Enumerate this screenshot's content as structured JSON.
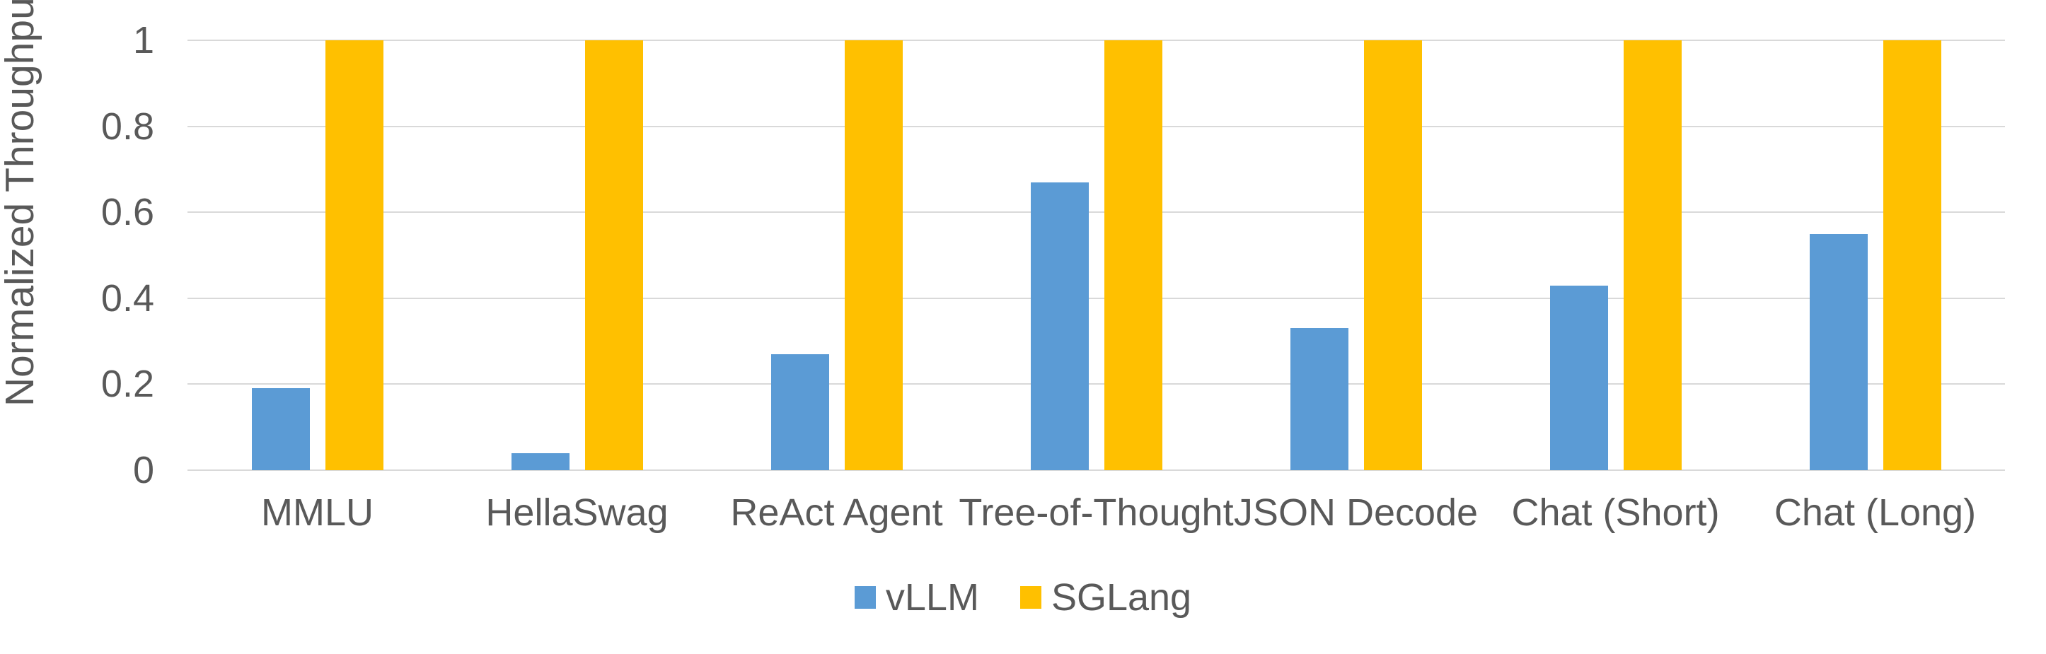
{
  "chart_data": {
    "type": "bar",
    "title": "",
    "xlabel": "",
    "ylabel": "Normalized Throughput",
    "categories": [
      "MMLU",
      "HellaSwag",
      "ReAct Agent",
      "Tree-of-Thought",
      "JSON Decode",
      "Chat (Short)",
      "Chat (Long)"
    ],
    "series": [
      {
        "name": "vLLM",
        "color": "#5B9BD5",
        "values": [
          0.19,
          0.04,
          0.27,
          0.67,
          0.33,
          0.43,
          0.55
        ]
      },
      {
        "name": "SGLang",
        "color": "#FFC000",
        "values": [
          1,
          1,
          1,
          1,
          1,
          1,
          1
        ]
      }
    ],
    "ylim": [
      0,
      1
    ],
    "yticks": [
      0,
      0.2,
      0.4,
      0.6,
      0.8,
      1
    ],
    "ytick_labels": [
      "0",
      "0.2",
      "0.4",
      "0.6",
      "0.8",
      "1"
    ],
    "grid": true,
    "legend_position": "bottom-center"
  },
  "colors": {
    "axis_text": "#595959",
    "gridline": "#D9D9D9",
    "background": "#FFFFFF"
  }
}
